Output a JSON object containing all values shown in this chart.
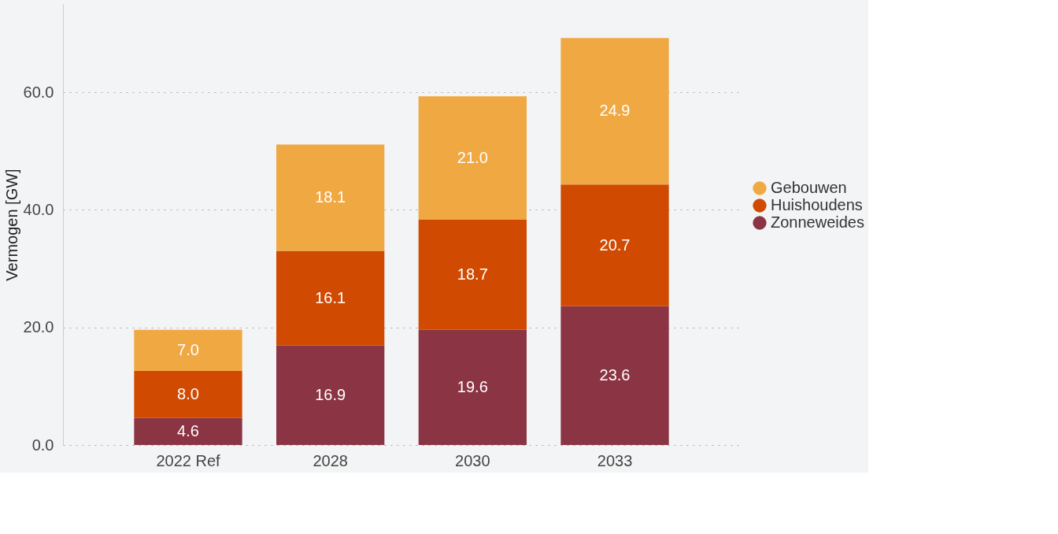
{
  "chart_data": {
    "type": "bar",
    "stacked": true,
    "ylabel": "Vermogen [GW]",
    "categories": [
      "2022 Ref",
      "2028",
      "2030",
      "2033"
    ],
    "series": [
      {
        "name": "Zonneweides",
        "color": "#8b3443",
        "values": [
          4.6,
          16.9,
          19.6,
          23.6
        ],
        "value_labels": [
          "4.6",
          "16.9",
          "19.6",
          "23.6"
        ]
      },
      {
        "name": "Huishoudens",
        "color": "#d04a02",
        "values": [
          8.0,
          16.1,
          18.7,
          20.7
        ],
        "value_labels": [
          "8.0",
          "16.1",
          "18.7",
          "20.7"
        ]
      },
      {
        "name": "Gebouwen",
        "color": "#f0a843",
        "values": [
          7.0,
          18.1,
          21.0,
          24.9
        ],
        "value_labels": [
          "7.0",
          "18.1",
          "21.0",
          "24.9"
        ]
      }
    ],
    "ylim": [
      0,
      75
    ],
    "yticks": [
      {
        "value": 0,
        "label": "0.0"
      },
      {
        "value": 20,
        "label": "20.0"
      },
      {
        "value": 40,
        "label": "40.0"
      },
      {
        "value": 60,
        "label": "60.0"
      }
    ],
    "grid": "y",
    "legend": "right"
  }
}
